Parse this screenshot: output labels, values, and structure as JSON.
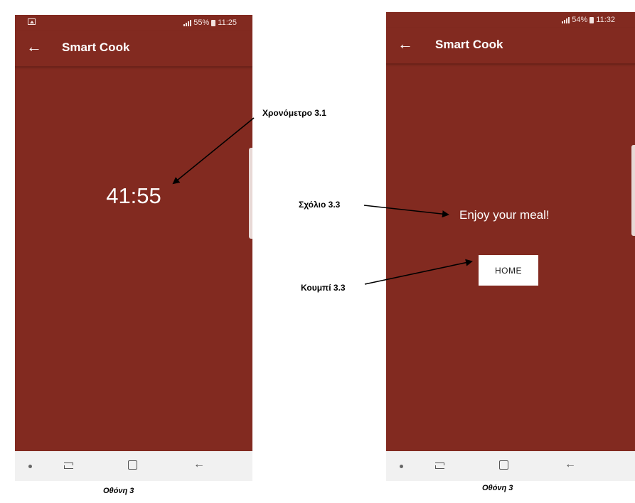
{
  "screen1": {
    "status": {
      "battery_text": "55%",
      "time": "11:25"
    },
    "app_title": "Smart Cook",
    "timer": "41:55",
    "caption": "Οθόνη 3"
  },
  "screen2": {
    "status": {
      "battery_text": "54%",
      "time": "11:32"
    },
    "app_title": "Smart Cook",
    "message": "Enjoy your meal!",
    "home_button": "HOME",
    "caption": "Οθόνη 3"
  },
  "annotations": {
    "timer_label": "Χρονόμετρο 3.1",
    "comment_label": "Σχόλιο 3.3",
    "button_label": "Κουμπί 3.3"
  },
  "colors": {
    "app_background": "#822a20",
    "nav_bar": "#f1f1f1",
    "button_background": "#ffffff"
  },
  "icons": [
    "gallery-icon",
    "signal-icon",
    "battery-icon",
    "back-arrow-icon",
    "nav-dot-icon",
    "recent-apps-icon",
    "home-nav-icon",
    "back-nav-icon"
  ]
}
